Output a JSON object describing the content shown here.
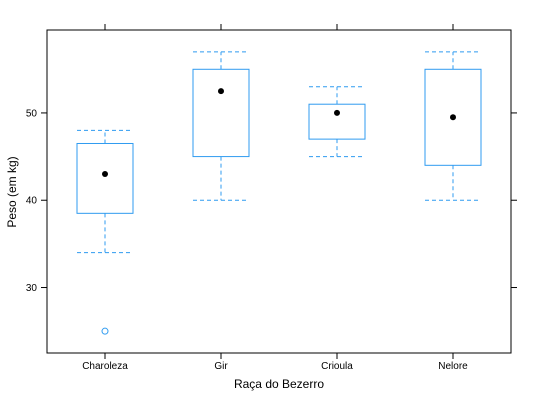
{
  "colors": {
    "box": "#2f9bf0",
    "mean": "#000000",
    "frame": "#000000",
    "background": "#ffffff"
  },
  "chart_data": {
    "type": "box",
    "title": "",
    "xlabel": "Raça do Bezerro",
    "ylabel": "Peso (em kg)",
    "ylim": [
      22.5,
      59.5
    ],
    "yticks": [
      30,
      40,
      50
    ],
    "categories": [
      "Charoleza",
      "Gir",
      "Crioula",
      "Nelore"
    ],
    "boxes": [
      {
        "category": "Charoleza",
        "whisker_low": 34,
        "q1": 38.5,
        "median": 43,
        "q3": 46.5,
        "whisker_high": 48,
        "mean": 43,
        "outliers": [
          25
        ]
      },
      {
        "category": "Gir",
        "whisker_low": 40,
        "q1": 45,
        "median": 52.5,
        "q3": 55,
        "whisker_high": 57,
        "mean": 52.5,
        "outliers": []
      },
      {
        "category": "Crioula",
        "whisker_low": 45,
        "q1": 47,
        "median": 50,
        "q3": 51,
        "whisker_high": 53,
        "mean": 50,
        "outliers": []
      },
      {
        "category": "Nelore",
        "whisker_low": 40,
        "q1": 44,
        "median": 49.5,
        "q3": 55,
        "whisker_high": 57,
        "mean": 49.5,
        "outliers": []
      }
    ],
    "grid": false,
    "legend": "none"
  }
}
